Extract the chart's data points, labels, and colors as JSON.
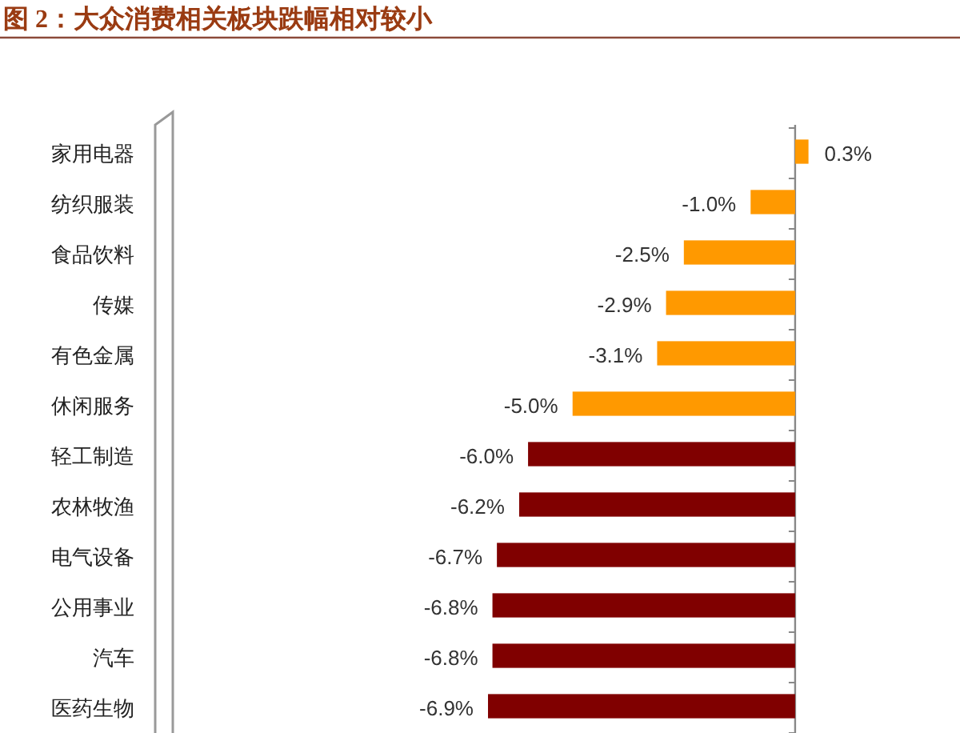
{
  "chart_data": {
    "type": "bar",
    "orientation": "horizontal",
    "title": "图 2：大众消费相关板块跌幅相对较小",
    "categories": [
      "家用电器",
      "纺织服装",
      "食品饮料",
      "传媒",
      "有色金属",
      "休闲服务",
      "轻工制造",
      "农林牧渔",
      "电气设备",
      "公用事业",
      "汽车",
      "医药生物"
    ],
    "values": [
      0.3,
      -1.0,
      -2.5,
      -2.9,
      -3.1,
      -5.0,
      -6.0,
      -6.2,
      -6.7,
      -6.8,
      -6.8,
      -6.9
    ],
    "colors": [
      "#ff9900",
      "#ff9900",
      "#ff9900",
      "#ff9900",
      "#ff9900",
      "#ff9900",
      "#800000",
      "#800000",
      "#800000",
      "#800000",
      "#800000",
      "#800000"
    ],
    "value_labels": [
      "0.3%",
      "-1.0%",
      "-2.5%",
      "-2.9%",
      "-3.1%",
      "-5.0%",
      "-6.0%",
      "-6.2%",
      "-6.7%",
      "-6.8%",
      "-6.8%",
      "-6.9%"
    ],
    "tick_labels": "y"
  }
}
